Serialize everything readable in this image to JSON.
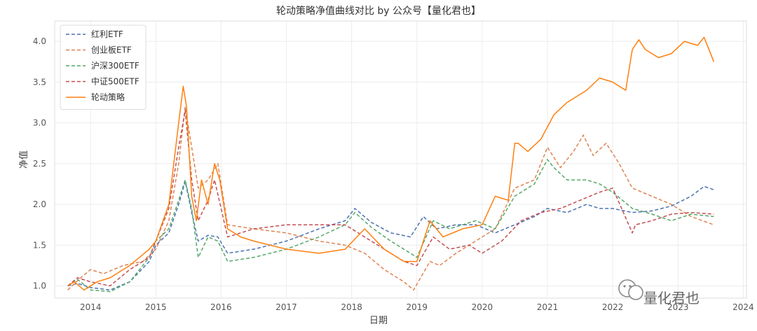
{
  "chart_data": {
    "type": "line",
    "title": "轮动策略净值曲线对比 by 公众号【量化君也】",
    "xlabel": "日期",
    "ylabel": "净值",
    "xlim": [
      2013.45,
      2024.05
    ],
    "ylim": [
      0.85,
      4.25
    ],
    "xticks": [
      2014,
      2015,
      2016,
      2017,
      2018,
      2019,
      2020,
      2021,
      2022,
      2023,
      2024
    ],
    "xtick_labels": [
      "2014",
      "2015",
      "2016",
      "2017",
      "2018",
      "2019",
      "2020",
      "2021",
      "2022",
      "2023",
      "2024"
    ],
    "yticks": [
      1.0,
      1.5,
      2.0,
      2.5,
      3.0,
      3.5,
      4.0
    ],
    "ytick_labels": [
      "1.0",
      "1.5",
      "2.0",
      "2.5",
      "3.0",
      "3.5",
      "4.0"
    ],
    "grid": true,
    "legend_position": "top-left",
    "series": [
      {
        "name": "红利ETF",
        "color": "#4c72b0",
        "style": "dashed",
        "x": [
          2013.65,
          2013.8,
          2014.0,
          2014.3,
          2014.6,
          2014.9,
          2015.0,
          2015.2,
          2015.35,
          2015.45,
          2015.55,
          2015.65,
          2015.8,
          2015.95,
          2016.1,
          2016.5,
          2017.0,
          2017.5,
          2017.9,
          2018.05,
          2018.3,
          2018.6,
          2018.9,
          2019.1,
          2019.3,
          2019.6,
          2019.9,
          2020.2,
          2020.5,
          2020.8,
          2021.0,
          2021.3,
          2021.6,
          2021.8,
          2022.0,
          2022.3,
          2022.6,
          2022.9,
          2023.2,
          2023.4,
          2023.55
        ],
        "y": [
          1.0,
          1.03,
          0.98,
          0.95,
          1.05,
          1.3,
          1.5,
          1.65,
          2.0,
          2.28,
          1.9,
          1.55,
          1.62,
          1.6,
          1.4,
          1.45,
          1.55,
          1.7,
          1.8,
          1.95,
          1.78,
          1.65,
          1.6,
          1.85,
          1.7,
          1.75,
          1.75,
          1.65,
          1.75,
          1.85,
          1.95,
          1.9,
          2.0,
          1.95,
          1.95,
          1.9,
          1.92,
          1.98,
          2.1,
          2.22,
          2.18
        ]
      },
      {
        "name": "创业板ETF",
        "color": "#dd8452",
        "style": "dashed",
        "x": [
          2013.65,
          2013.85,
          2014.0,
          2014.2,
          2014.5,
          2014.8,
          2015.0,
          2015.2,
          2015.35,
          2015.45,
          2015.55,
          2015.65,
          2015.8,
          2015.95,
          2016.1,
          2016.5,
          2017.0,
          2017.5,
          2017.9,
          2018.2,
          2018.5,
          2018.8,
          2018.95,
          2019.2,
          2019.35,
          2019.6,
          2019.9,
          2020.2,
          2020.5,
          2020.8,
          2021.0,
          2021.2,
          2021.4,
          2021.55,
          2021.7,
          2021.9,
          2022.1,
          2022.3,
          2022.6,
          2022.9,
          2023.2,
          2023.55
        ],
        "y": [
          0.95,
          1.1,
          1.2,
          1.15,
          1.25,
          1.3,
          1.45,
          1.8,
          2.5,
          3.2,
          2.7,
          2.2,
          2.3,
          2.5,
          1.75,
          1.7,
          1.65,
          1.55,
          1.5,
          1.4,
          1.2,
          1.05,
          0.95,
          1.3,
          1.25,
          1.4,
          1.55,
          1.7,
          2.2,
          2.3,
          2.7,
          2.45,
          2.65,
          2.85,
          2.6,
          2.75,
          2.5,
          2.2,
          2.1,
          2.0,
          1.85,
          1.75
        ]
      },
      {
        "name": "沪深300ETF",
        "color": "#55a868",
        "style": "dashed",
        "x": [
          2013.65,
          2013.8,
          2014.0,
          2014.3,
          2014.6,
          2014.9,
          2015.0,
          2015.2,
          2015.35,
          2015.45,
          2015.55,
          2015.65,
          2015.8,
          2015.95,
          2016.1,
          2016.5,
          2017.0,
          2017.5,
          2017.9,
          2018.05,
          2018.3,
          2018.6,
          2018.9,
          2019.0,
          2019.25,
          2019.5,
          2019.9,
          2020.2,
          2020.5,
          2020.8,
          2021.0,
          2021.1,
          2021.3,
          2021.6,
          2021.8,
          2022.0,
          2022.3,
          2022.6,
          2022.9,
          2023.2,
          2023.55
        ],
        "y": [
          1.0,
          1.08,
          0.95,
          0.93,
          1.05,
          1.35,
          1.55,
          1.7,
          2.05,
          2.3,
          1.95,
          1.35,
          1.6,
          1.55,
          1.3,
          1.35,
          1.45,
          1.6,
          1.75,
          1.9,
          1.72,
          1.55,
          1.4,
          1.35,
          1.8,
          1.7,
          1.8,
          1.7,
          2.1,
          2.25,
          2.55,
          2.45,
          2.3,
          2.3,
          2.25,
          2.15,
          1.95,
          1.88,
          1.8,
          1.88,
          1.85
        ]
      },
      {
        "name": "中证500ETF",
        "color": "#c44e52",
        "style": "dashed",
        "x": [
          2013.65,
          2013.8,
          2014.0,
          2014.3,
          2014.6,
          2014.9,
          2015.0,
          2015.2,
          2015.35,
          2015.45,
          2015.55,
          2015.65,
          2015.8,
          2015.9,
          2016.1,
          2016.5,
          2017.0,
          2017.5,
          2017.9,
          2018.1,
          2018.5,
          2018.8,
          2019.0,
          2019.25,
          2019.5,
          2019.8,
          2020.0,
          2020.3,
          2020.6,
          2020.9,
          2021.2,
          2021.5,
          2021.8,
          2022.0,
          2022.3,
          2022.35,
          2022.6,
          2022.9,
          2023.2,
          2023.55
        ],
        "y": [
          1.0,
          1.1,
          1.05,
          1.0,
          1.2,
          1.35,
          1.55,
          1.95,
          2.7,
          3.15,
          2.3,
          1.8,
          2.05,
          2.3,
          1.6,
          1.7,
          1.75,
          1.75,
          1.75,
          1.65,
          1.45,
          1.3,
          1.25,
          1.6,
          1.45,
          1.5,
          1.4,
          1.55,
          1.8,
          1.9,
          1.95,
          2.05,
          2.15,
          2.2,
          1.65,
          1.75,
          1.8,
          1.88,
          1.9,
          1.88
        ]
      },
      {
        "name": "轮动策略",
        "color": "#ff7f0e",
        "style": "solid",
        "x": [
          2013.65,
          2013.75,
          2013.9,
          2014.1,
          2014.3,
          2014.6,
          2014.9,
          2015.0,
          2015.2,
          2015.35,
          2015.42,
          2015.47,
          2015.55,
          2015.62,
          2015.7,
          2015.8,
          2015.9,
          2015.98,
          2016.1,
          2016.3,
          2016.5,
          2017.0,
          2017.5,
          2017.9,
          2018.2,
          2018.5,
          2018.8,
          2019.0,
          2019.2,
          2019.4,
          2019.7,
          2020.0,
          2020.2,
          2020.4,
          2020.5,
          2020.55,
          2020.7,
          2020.9,
          2021.1,
          2021.3,
          2021.6,
          2021.8,
          2022.0,
          2022.2,
          2022.3,
          2022.4,
          2022.5,
          2022.7,
          2022.9,
          2023.1,
          2023.3,
          2023.4,
          2023.55
        ],
        "y": [
          1.0,
          1.05,
          0.95,
          1.05,
          1.1,
          1.25,
          1.45,
          1.55,
          2.0,
          3.0,
          3.45,
          3.2,
          2.1,
          1.8,
          2.3,
          2.0,
          2.5,
          2.3,
          1.7,
          1.6,
          1.55,
          1.45,
          1.4,
          1.45,
          1.7,
          1.45,
          1.3,
          1.3,
          1.8,
          1.6,
          1.7,
          1.75,
          2.1,
          2.05,
          2.75,
          2.75,
          2.65,
          2.8,
          3.1,
          3.25,
          3.4,
          3.55,
          3.5,
          3.4,
          3.9,
          4.02,
          3.9,
          3.8,
          3.85,
          4.0,
          3.95,
          4.05,
          3.75
        ]
      }
    ]
  },
  "watermark": {
    "text": "量化君也",
    "icon": "wechat-icon"
  }
}
